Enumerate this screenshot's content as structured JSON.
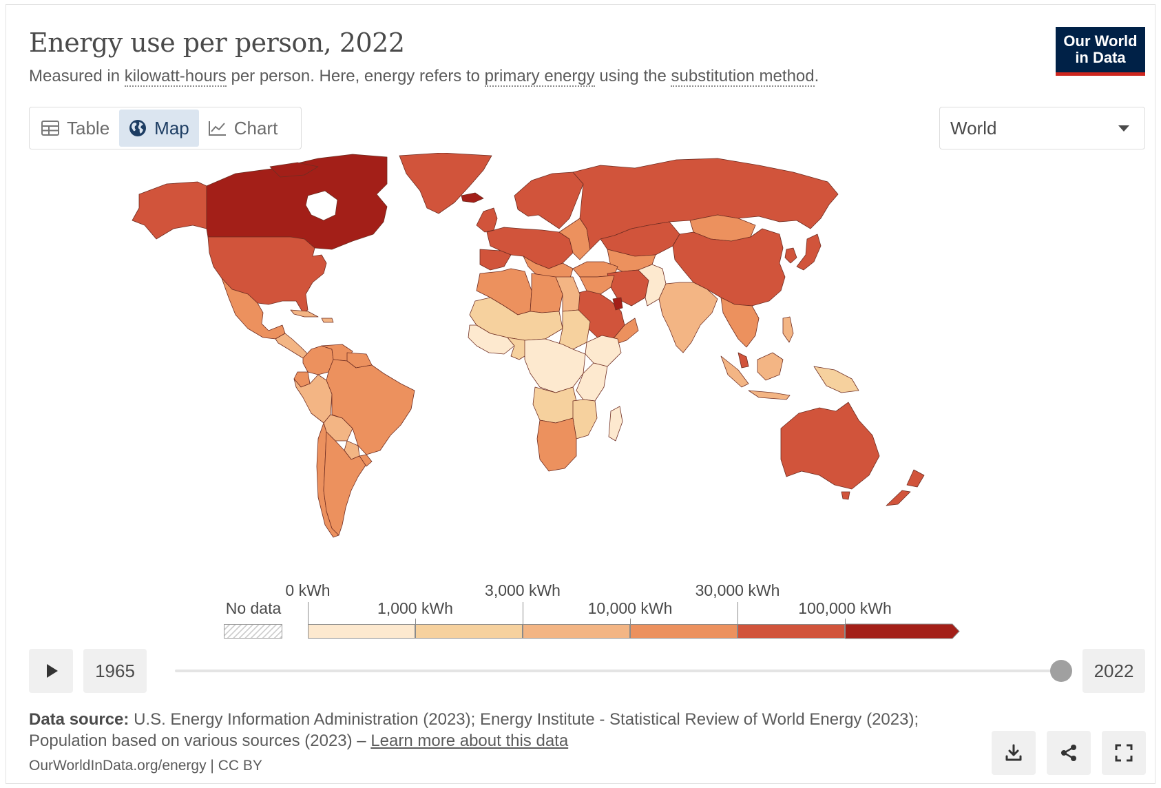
{
  "header": {
    "title": "Energy use per person, 2022",
    "subtitle_parts": [
      "Measured in ",
      "kilowatt-hours",
      " per person. Here, energy refers to ",
      "primary energy",
      " using the ",
      "substitution method",
      "."
    ],
    "logo_line1": "Our World",
    "logo_line2": "in Data"
  },
  "tabs": [
    {
      "label": "Table",
      "icon": "table-icon",
      "active": false
    },
    {
      "label": "Map",
      "icon": "globe-icon",
      "active": true
    },
    {
      "label": "Chart",
      "icon": "line-chart-icon",
      "active": false
    }
  ],
  "region_select": {
    "value": "World"
  },
  "legend": {
    "no_data_label": "No data",
    "labels_top": [
      "0 kWh",
      "3,000 kWh",
      "30,000 kWh"
    ],
    "labels_bottom": [
      "1,000 kWh",
      "10,000 kWh",
      "100,000 kWh"
    ],
    "bins": [
      {
        "from": 0,
        "to": 1000,
        "color": "#fde9cf"
      },
      {
        "from": 1000,
        "to": 3000,
        "color": "#f6d19e"
      },
      {
        "from": 3000,
        "to": 10000,
        "color": "#f3b584"
      },
      {
        "from": 10000,
        "to": 30000,
        "color": "#ec915e"
      },
      {
        "from": 30000,
        "to": 100000,
        "color": "#d1543b"
      },
      {
        "from": 100000,
        "to": null,
        "color": "#a31f18"
      }
    ]
  },
  "timeline": {
    "start_year": "1965",
    "end_year": "2022",
    "selected_fraction": 1.0
  },
  "footer": {
    "source_label": "Data source:",
    "source_text": "U.S. Energy Information Administration (2023); Energy Institute - Statistical Review of World Energy (2023); Population based on various sources (2023) –",
    "learn_more": "Learn more about this data",
    "credit": "OurWorldInData.org/energy | CC BY"
  },
  "actions": [
    "download-icon",
    "share-icon",
    "fullscreen-icon"
  ]
}
